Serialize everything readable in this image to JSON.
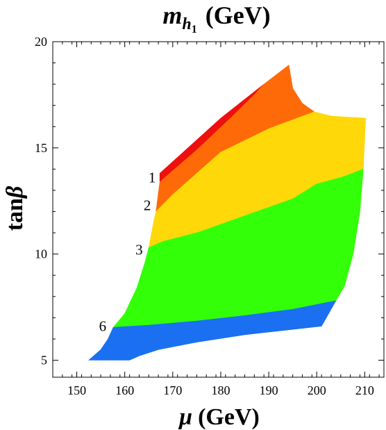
{
  "chart_data": {
    "type": "contour",
    "title": {
      "symbol": "m",
      "sub": "h",
      "subsub": "1",
      "unit": "(GeV)"
    },
    "xlabel": {
      "symbol": "μ",
      "unit": "(GeV)"
    },
    "ylabel": {
      "prefix": "tan",
      "symbol": "β"
    },
    "xlim": [
      145,
      214
    ],
    "ylim": [
      4.2,
      20
    ],
    "xticks": [
      150,
      160,
      170,
      180,
      190,
      200,
      210
    ],
    "yticks": [
      5,
      10,
      15,
      20
    ],
    "regions": [
      {
        "name": "red",
        "color": "#ee0f0f",
        "polygon": [
          [
            167.3,
            13.8
          ],
          [
            180,
            16.4
          ],
          [
            189,
            18.0
          ],
          [
            187,
            17.5
          ],
          [
            182.5,
            16.5
          ],
          [
            175,
            14.9
          ],
          [
            167.3,
            13.4
          ]
        ]
      },
      {
        "name": "orange",
        "color": "#ff6a08",
        "polygon": [
          [
            167.3,
            13.4
          ],
          [
            175,
            14.9
          ],
          [
            182.5,
            16.5
          ],
          [
            187,
            17.5
          ],
          [
            189,
            18.0
          ],
          [
            194.2,
            18.9
          ],
          [
            195,
            17.8
          ],
          [
            197,
            17.1
          ],
          [
            199.5,
            16.7
          ],
          [
            190,
            15.9
          ],
          [
            180,
            14.8
          ],
          [
            175,
            13.8
          ],
          [
            170,
            12.8
          ],
          [
            166.5,
            12.0
          ]
        ]
      },
      {
        "name": "yellow",
        "color": "#ffd80a",
        "polygon": [
          [
            166.5,
            12.0
          ],
          [
            170,
            12.8
          ],
          [
            175,
            13.8
          ],
          [
            180,
            14.8
          ],
          [
            190,
            15.9
          ],
          [
            199.5,
            16.7
          ],
          [
            203,
            16.5
          ],
          [
            210.2,
            16.4
          ],
          [
            209.7,
            14.0
          ],
          [
            205,
            13.6
          ],
          [
            200,
            13.3
          ],
          [
            195,
            12.6
          ],
          [
            185,
            11.8
          ],
          [
            175,
            11.0
          ],
          [
            168,
            10.6
          ],
          [
            165,
            10.3
          ],
          [
            166,
            11.5
          ]
        ]
      },
      {
        "name": "green",
        "color": "#33ff08",
        "polygon": [
          [
            165,
            10.3
          ],
          [
            168,
            10.6
          ],
          [
            175,
            11.0
          ],
          [
            185,
            11.8
          ],
          [
            195,
            12.6
          ],
          [
            200,
            13.3
          ],
          [
            205,
            13.6
          ],
          [
            209.7,
            14.0
          ],
          [
            209,
            12.0
          ],
          [
            207.6,
            10.0
          ],
          [
            205.8,
            8.5
          ],
          [
            204,
            7.8
          ],
          [
            195,
            7.4
          ],
          [
            185,
            7.1
          ],
          [
            175,
            6.85
          ],
          [
            165,
            6.65
          ],
          [
            157.6,
            6.55
          ],
          [
            160,
            7.2
          ],
          [
            162.5,
            8.4
          ],
          [
            164.2,
            9.6
          ]
        ]
      },
      {
        "name": "blue",
        "color": "#1a70f0",
        "polygon": [
          [
            157.6,
            6.55
          ],
          [
            165,
            6.65
          ],
          [
            175,
            6.85
          ],
          [
            185,
            7.1
          ],
          [
            195,
            7.4
          ],
          [
            204,
            7.8
          ],
          [
            202.5,
            7.2
          ],
          [
            201,
            6.6
          ],
          [
            195,
            6.45
          ],
          [
            185,
            6.2
          ],
          [
            175,
            5.85
          ],
          [
            167,
            5.5
          ],
          [
            163,
            5.2
          ],
          [
            161,
            5.0
          ],
          [
            152.5,
            5.0
          ],
          [
            155,
            5.5
          ],
          [
            156.5,
            6.0
          ]
        ]
      }
    ],
    "contour_labels": [
      {
        "text": "1",
        "x": 165.7,
        "y": 13.6
      },
      {
        "text": "2",
        "x": 164.7,
        "y": 12.3
      },
      {
        "text": "3",
        "x": 163.0,
        "y": 10.2
      },
      {
        "text": "6",
        "x": 155.4,
        "y": 6.6
      }
    ]
  }
}
